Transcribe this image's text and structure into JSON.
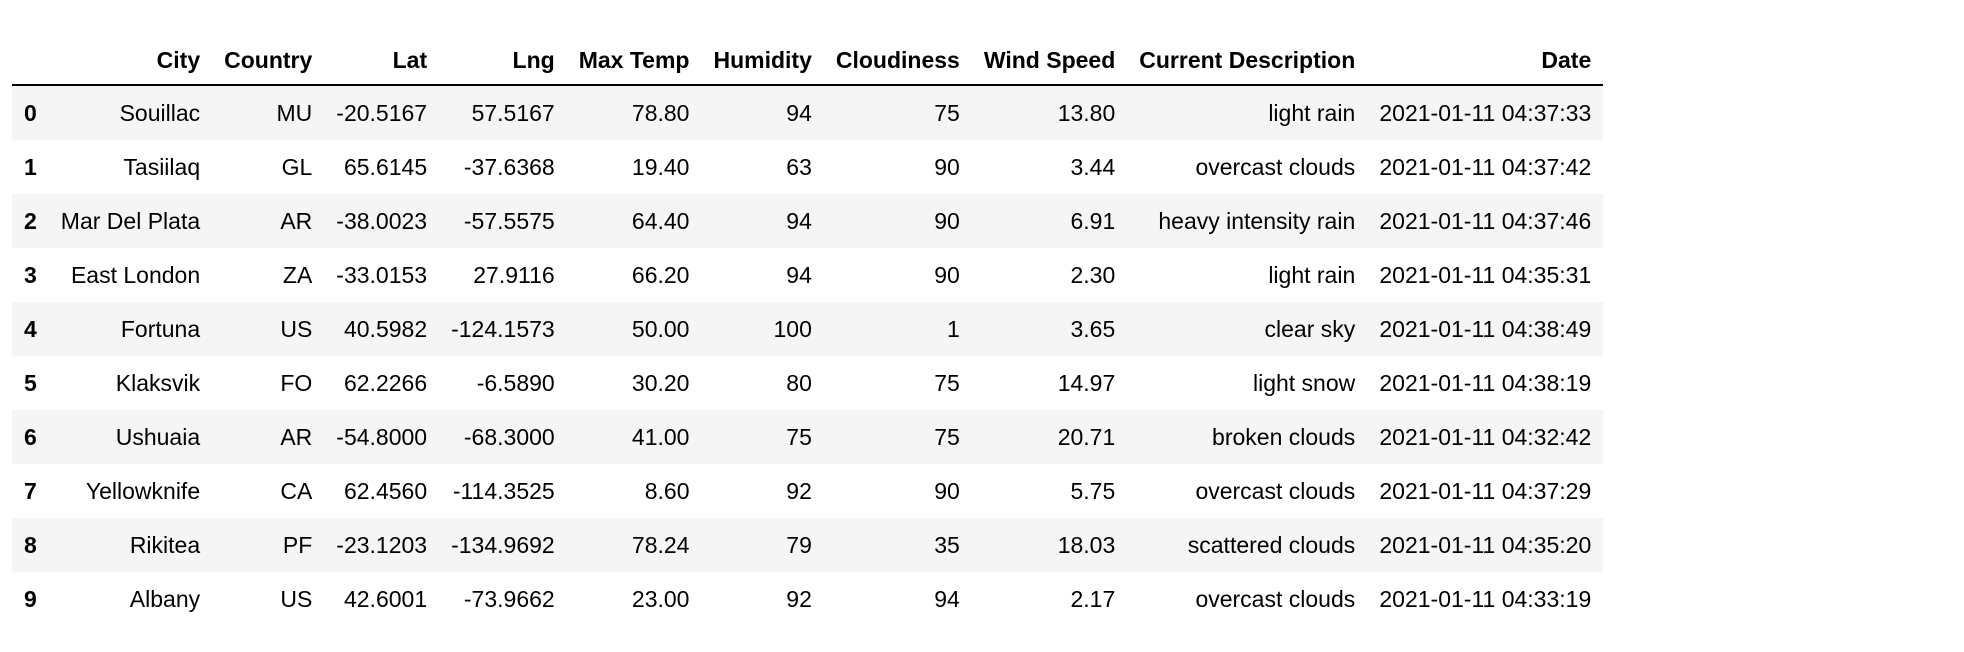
{
  "table": {
    "columns": [
      "",
      "City",
      "Country",
      "Lat",
      "Lng",
      "Max Temp",
      "Humidity",
      "Cloudiness",
      "Wind Speed",
      "Current Description",
      "Date"
    ],
    "rows": [
      [
        "0",
        "Souillac",
        "MU",
        "-20.5167",
        "57.5167",
        "78.80",
        "94",
        "75",
        "13.80",
        "light rain",
        "2021-01-11 04:37:33"
      ],
      [
        "1",
        "Tasiilaq",
        "GL",
        "65.6145",
        "-37.6368",
        "19.40",
        "63",
        "90",
        "3.44",
        "overcast clouds",
        "2021-01-11 04:37:42"
      ],
      [
        "2",
        "Mar Del Plata",
        "AR",
        "-38.0023",
        "-57.5575",
        "64.40",
        "94",
        "90",
        "6.91",
        "heavy intensity rain",
        "2021-01-11 04:37:46"
      ],
      [
        "3",
        "East London",
        "ZA",
        "-33.0153",
        "27.9116",
        "66.20",
        "94",
        "90",
        "2.30",
        "light rain",
        "2021-01-11 04:35:31"
      ],
      [
        "4",
        "Fortuna",
        "US",
        "40.5982",
        "-124.1573",
        "50.00",
        "100",
        "1",
        "3.65",
        "clear sky",
        "2021-01-11 04:38:49"
      ],
      [
        "5",
        "Klaksvik",
        "FO",
        "62.2266",
        "-6.5890",
        "30.20",
        "80",
        "75",
        "14.97",
        "light snow",
        "2021-01-11 04:38:19"
      ],
      [
        "6",
        "Ushuaia",
        "AR",
        "-54.8000",
        "-68.3000",
        "41.00",
        "75",
        "75",
        "20.71",
        "broken clouds",
        "2021-01-11 04:32:42"
      ],
      [
        "7",
        "Yellowknife",
        "CA",
        "62.4560",
        "-114.3525",
        "8.60",
        "92",
        "90",
        "5.75",
        "overcast clouds",
        "2021-01-11 04:37:29"
      ],
      [
        "8",
        "Rikitea",
        "PF",
        "-23.1203",
        "-134.9692",
        "78.24",
        "79",
        "35",
        "18.03",
        "scattered clouds",
        "2021-01-11 04:35:20"
      ],
      [
        "9",
        "Albany",
        "US",
        "42.6001",
        "-73.9662",
        "23.00",
        "92",
        "94",
        "2.17",
        "overcast clouds",
        "2021-01-11 04:33:19"
      ]
    ]
  },
  "colors": {
    "stripe": "#f5f5f5",
    "header_rule": "#000000"
  }
}
